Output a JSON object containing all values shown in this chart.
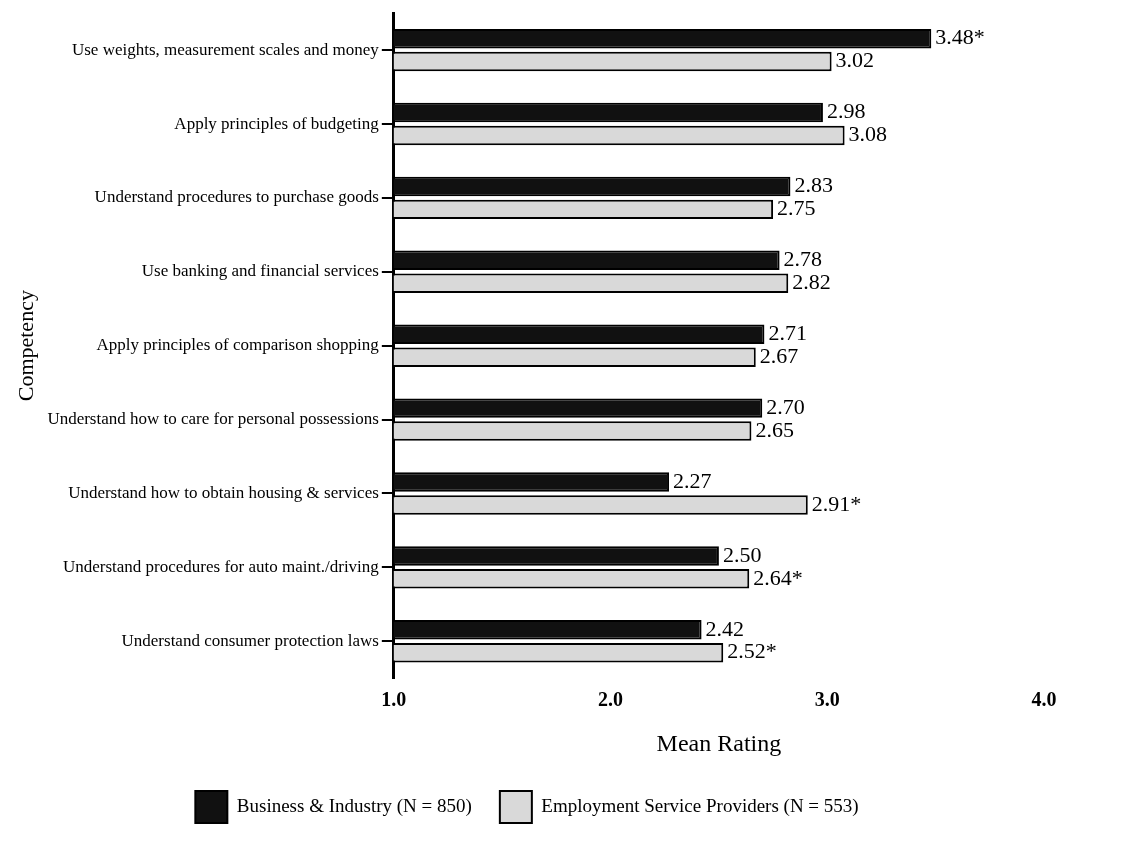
{
  "chart_data": {
    "type": "bar",
    "orientation": "horizontal",
    "xlabel": "Mean Rating",
    "ylabel": "Competency",
    "categories": [
      "Use weights, measurement scales and money",
      "Apply principles of budgeting",
      "Understand procedures to purchase goods",
      "Use banking and financial services",
      "Apply principles of comparison shopping",
      "Understand how to care for personal possessions",
      "Understand how to obtain housing & services",
      "Understand procedures for auto maint./driving",
      "Understand consumer protection laws"
    ],
    "series": [
      {
        "name": "Business & Industry (N = 850)",
        "color": "#111111",
        "values": [
          3.48,
          2.98,
          2.83,
          2.78,
          2.71,
          2.7,
          2.27,
          2.5,
          2.42
        ],
        "value_labels": [
          "3.48*",
          "2.98",
          "2.83",
          "2.78",
          "2.71",
          "2.70",
          "2.27",
          "2.50",
          "2.42"
        ]
      },
      {
        "name": "Employment Service Providers (N = 553)",
        "color": "#d9d9d9",
        "values": [
          3.02,
          3.08,
          2.75,
          2.82,
          2.67,
          2.65,
          2.91,
          2.64,
          2.52
        ],
        "value_labels": [
          "3.02",
          "3.08",
          "2.75",
          "2.82",
          "2.67",
          "2.65",
          "2.91*",
          "2.64*",
          "2.52*"
        ]
      }
    ],
    "xlim": [
      1.0,
      4.0
    ],
    "xticks": [
      {
        "value": 1,
        "label": "1.0"
      },
      {
        "value": 2,
        "label": "2.0"
      },
      {
        "value": 3,
        "label": "3.0"
      },
      {
        "value": 4,
        "label": "4.0"
      }
    ],
    "grid": false,
    "legend": "bottom"
  }
}
